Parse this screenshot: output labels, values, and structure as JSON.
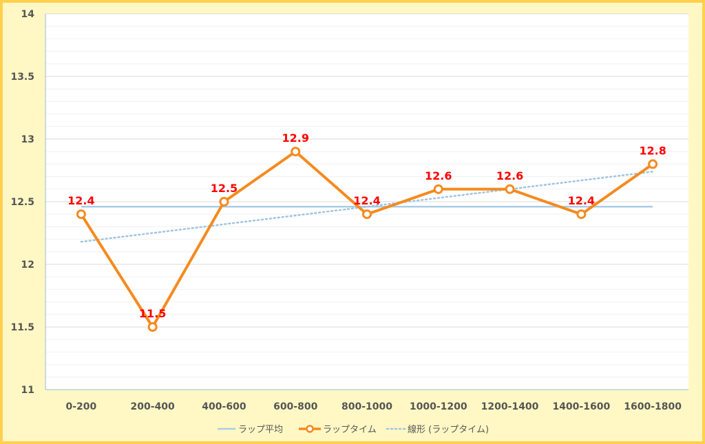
{
  "chart_data": {
    "type": "line",
    "categories": [
      "0-200",
      "200-400",
      "400-600",
      "600-800",
      "800-1000",
      "1000-1200",
      "1200-1400",
      "1400-1600",
      "1600-1800"
    ],
    "series": [
      {
        "name": "ラップ平均",
        "values": [
          12.46,
          12.46,
          12.46,
          12.46,
          12.46,
          12.46,
          12.46,
          12.46,
          12.46
        ],
        "color": "#a9cce8",
        "style": "solid"
      },
      {
        "name": "ラップタイム",
        "values": [
          12.4,
          11.5,
          12.5,
          12.9,
          12.4,
          12.6,
          12.6,
          12.4,
          12.8
        ],
        "color": "#f58a1f",
        "style": "solid-marker"
      },
      {
        "name": "線形 (ラップタイム)",
        "values": [
          12.18,
          12.25,
          12.32,
          12.39,
          12.46,
          12.53,
          12.6,
          12.67,
          12.74
        ],
        "color": "#9fc3e3",
        "style": "dotted"
      }
    ],
    "data_labels": [
      "12.4",
      "11.5",
      "12.5",
      "12.9",
      "12.4",
      "12.6",
      "12.6",
      "12.4",
      "12.8"
    ],
    "yticks": [
      "11",
      "11.5",
      "12",
      "12.5",
      "13",
      "13.5",
      "14"
    ],
    "ylim": [
      11,
      14
    ],
    "grid": true,
    "legend_position": "bottom",
    "title": "",
    "xlabel": "",
    "ylabel": ""
  }
}
